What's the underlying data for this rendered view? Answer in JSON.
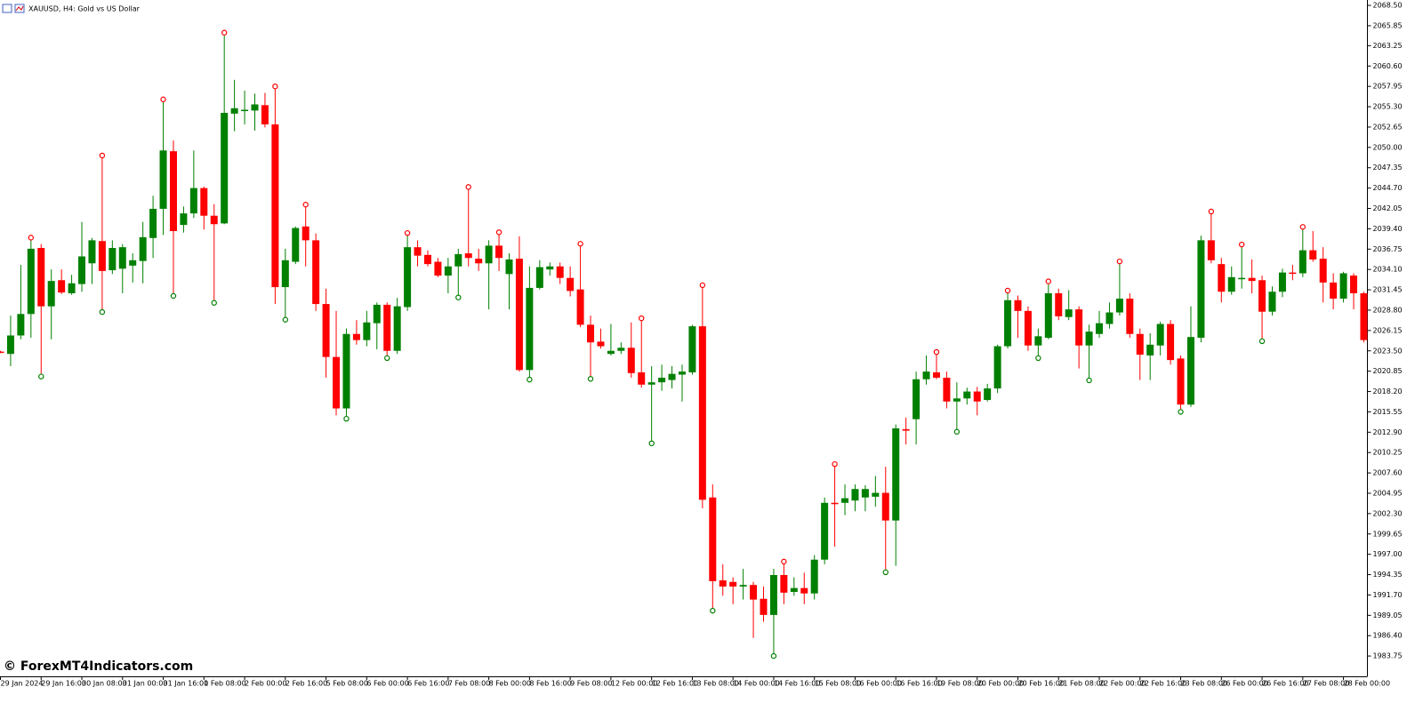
{
  "chart_data": {
    "type": "candlestick",
    "title": "XAUUSD, H4:  Gold vs US Dollar",
    "watermark": "© ForexMT4Indicators.com",
    "up_color": "#008000",
    "down_color": "#ff0000",
    "ylim": [
      1981.1,
      2069.2
    ],
    "yticks": [
      {
        "value": 2068.5,
        "label": "2068.50"
      },
      2065.85,
      2063.25,
      {
        "value": 2060.6,
        "label": "2060.60"
      },
      2057.95,
      {
        "value": 2055.3,
        "label": "2055.30"
      },
      2052.65,
      {
        "value": 2050,
        "label": "2050.00"
      },
      2047.35,
      {
        "value": 2044.7,
        "label": "2044.70"
      },
      2042.05,
      {
        "value": 2039.4,
        "label": "2039.40"
      },
      2036.75,
      {
        "value": 2034.1,
        "label": "2034.10"
      },
      2031.45,
      {
        "value": 2028.8,
        "label": "2028.80"
      },
      2026.15,
      {
        "value": 2023.5,
        "label": "2023.50"
      },
      2020.85,
      {
        "value": 2018.2,
        "label": "2018.20"
      },
      2015.55,
      {
        "value": 2012.9,
        "label": "2012.90"
      },
      2010.25,
      {
        "value": 2007.6,
        "label": "2007.60"
      },
      2004.95,
      {
        "value": 2002.3,
        "label": "2002.30"
      },
      1999.65,
      {
        "value": 1997,
        "label": "1997.00"
      },
      1994.35,
      {
        "value": 1991.7,
        "label": "1991.70"
      },
      1989.05,
      {
        "value": 1986.4,
        "label": "1986.40"
      },
      1983.75
    ],
    "categories": [
      "29 Jan 2024",
      null,
      null,
      null,
      "29 Jan 16:00",
      null,
      null,
      null,
      "30 Jan 08:00",
      null,
      null,
      null,
      "31 Jan 00:00",
      null,
      null,
      null,
      "31 Jan 16:00",
      null,
      null,
      null,
      "1 Feb 08:00",
      null,
      null,
      null,
      "2 Feb 00:00",
      null,
      null,
      null,
      "2 Feb 16:00",
      null,
      null,
      null,
      "5 Feb 08:00",
      null,
      null,
      null,
      "6 Feb 00:00",
      null,
      null,
      null,
      "6 Feb 16:00",
      null,
      null,
      null,
      "7 Feb 08:00",
      null,
      null,
      null,
      "8 Feb 00:00",
      null,
      null,
      null,
      "8 Feb 16:00",
      null,
      null,
      null,
      "9 Feb 08:00",
      null,
      null,
      null,
      "12 Feb 00:00",
      null,
      null,
      null,
      "12 Feb 16:00",
      null,
      null,
      null,
      "13 Feb 08:00",
      null,
      null,
      null,
      "14 Feb 00:00",
      null,
      null,
      null,
      "14 Feb 16:00",
      null,
      null,
      null,
      "15 Feb 08:00",
      null,
      null,
      null,
      "16 Feb 00:00",
      null,
      null,
      null,
      "16 Feb 16:00",
      null,
      null,
      null,
      "19 Feb 08:00",
      null,
      null,
      null,
      "20 Feb 00:00",
      null,
      null,
      null,
      "20 Feb 16:00",
      null,
      null,
      null,
      "21 Feb 08:00",
      null,
      null,
      null,
      "22 Feb 00:00",
      null,
      null,
      null,
      "22 Feb 16:00",
      null,
      null,
      null,
      "23 Feb 08:00",
      null,
      null,
      null,
      "26 Feb 00:00",
      null,
      null,
      null,
      "26 Feb 16:00",
      null,
      null,
      null,
      "27 Feb 08:00",
      null,
      null,
      null,
      "28 Feb 00:00",
      null,
      null
    ],
    "open": [
      2023.4,
      2023.1,
      2025.5,
      2028.3,
      2036.9,
      2029.3,
      2032.7,
      2031.0,
      2032.2,
      2034.9,
      2037.8,
      2034.0,
      2034.2,
      2034.6,
      2035.2,
      2038.2,
      2042.0,
      2049.5,
      2039.9,
      2041.4,
      2044.7,
      2041.1,
      2040.1,
      2054.4,
      2054.8,
      2054.8,
      2055.5,
      2053.0,
      2031.8,
      2035.1,
      2039.7,
      2037.9,
      2029.6,
      2022.7,
      2016.0,
      2025.7,
      2024.9,
      2027.1,
      2029.5,
      2023.5,
      2029.2,
      2037.0,
      2036.0,
      2035.1,
      2033.3,
      2034.5,
      2036.2,
      2035.5,
      2034.9,
      2037.2,
      2033.5,
      2035.5,
      2021.0,
      2031.7,
      2034.1,
      2034.5,
      2033.0,
      2031.5,
      2026.9,
      2024.7,
      2023.1,
      2023.5,
      2023.9,
      2020.7,
      2019.1,
      2019.4,
      2019.7,
      2020.4,
      2020.7,
      2026.7,
      2004.4,
      1993.6,
      1993.4,
      1992.8,
      1993.0,
      1991.2,
      1989.1,
      1994.3,
      1992.1,
      1992.6,
      1991.9,
      1996.3,
      2003.7,
      2003.7,
      2004.0,
      2004.4,
      2004.5,
      2005.0,
      2001.4,
      2013.3,
      2014.6,
      2019.8,
      2020.7,
      2020.0,
      2016.9,
      2017.3,
      2018.2,
      2017.1,
      2018.6,
      2024.1,
      2030.1,
      2028.7,
      2024.2,
      2025.2,
      2031.0,
      2027.9,
      2028.9,
      2024.2,
      2025.7,
      2027.0,
      2028.5,
      2030.3,
      2025.7,
      2022.9,
      2024.2,
      2027.0,
      2022.5,
      2016.5,
      2025.2,
      2037.9,
      2034.8,
      2031.2,
      2032.9,
      2033.0,
      2032.7,
      2028.6,
      2031.2,
      2033.7,
      2033.6,
      2036.6,
      2035.5,
      2032.4,
      2030.3,
      2033.3,
      2031.0
    ],
    "high": [
      2023.5,
      2028.1,
      2034.7,
      2037.9,
      2037.4,
      2034.1,
      2034.1,
      2033.4,
      2040.3,
      2038.2,
      2048.6,
      2037.9,
      2037.4,
      2036.2,
      2040.3,
      2043.7,
      2055.9,
      2050.9,
      2042.3,
      2049.6,
      2044.9,
      2042.6,
      2064.6,
      2058.8,
      2057.4,
      2057.0,
      2057.1,
      2057.6,
      2036.8,
      2039.7,
      2042.2,
      2038.8,
      2031.6,
      2028.7,
      2026.4,
      2027.5,
      2028.7,
      2029.8,
      2029.8,
      2030.4,
      2038.5,
      2037.9,
      2036.6,
      2035.6,
      2035.6,
      2036.8,
      2044.5,
      2036.8,
      2037.9,
      2038.6,
      2036.2,
      2038.4,
      2034.5,
      2035.3,
      2035.0,
      2035.0,
      2034.5,
      2037.1,
      2028.1,
      2026.4,
      2027.0,
      2024.6,
      2027.2,
      2027.4,
      2021.5,
      2021.7,
      2021.5,
      2021.7,
      2026.9,
      2031.7,
      2006.1,
      1995.7,
      1994.0,
      1995.1,
      1993.4,
      1992.8,
      1995.1,
      1995.7,
      1994.0,
      1994.6,
      1996.9,
      2004.4,
      2008.4,
      2006.1,
      2006.1,
      2006.0,
      2007.2,
      2008.4,
      2013.9,
      2014.8,
      2020.8,
      2022.9,
      2023.0,
      2020.8,
      2019.4,
      2018.7,
      2018.8,
      2019.2,
      2024.3,
      2031.0,
      2030.7,
      2029.3,
      2026.4,
      2032.2,
      2031.6,
      2031.4,
      2029.3,
      2026.9,
      2028.7,
      2029.8,
      2034.8,
      2031.0,
      2026.4,
      2025.8,
      2027.3,
      2027.5,
      2022.9,
      2029.3,
      2038.5,
      2041.3,
      2035.6,
      2034.5,
      2037.0,
      2035.4,
      2033.3,
      2031.9,
      2034.2,
      2034.7,
      2039.3,
      2039.1,
      2037.0,
      2033.6,
      2033.8,
      2033.6,
      2031.2
    ],
    "low": [
      2023.2,
      2021.5,
      2025.0,
      2025.2,
      2020.5,
      2025.0,
      2030.9,
      2030.8,
      2031.2,
      2032.2,
      2028.9,
      2033.5,
      2031.0,
      2032.4,
      2032.3,
      2035.6,
      2038.6,
      2031.0,
      2038.9,
      2040.8,
      2039.3,
      2030.1,
      2040.0,
      2052.1,
      2053.0,
      2052.2,
      2052.6,
      2029.6,
      2027.9,
      2034.8,
      2034.5,
      2028.7,
      2020.0,
      2015.1,
      2015.0,
      2024.3,
      2024.1,
      2023.7,
      2022.9,
      2023.1,
      2028.7,
      2034.5,
      2034.5,
      2033.1,
      2031.0,
      2030.8,
      2034.5,
      2033.9,
      2028.9,
      2033.9,
      2028.9,
      2020.8,
      2020.1,
      2031.5,
      2033.3,
      2032.2,
      2030.6,
      2026.6,
      2020.2,
      2023.8,
      2022.9,
      2023.1,
      2020.0,
      2018.7,
      2011.8,
      2018.3,
      2018.6,
      2016.9,
      2020.4,
      2003.0,
      1990.0,
      1991.6,
      1990.5,
      1991.1,
      1986.1,
      1988.2,
      1984.1,
      1990.5,
      1991.6,
      1990.5,
      1991.1,
      1995.7,
      1998.0,
      2002.1,
      2002.6,
      2002.6,
      2003.2,
      1995.0,
      1995.5,
      2011.3,
      2011.3,
      2019.1,
      2019.8,
      2016.0,
      2013.3,
      2016.5,
      2015.1,
      2016.9,
      2018.0,
      2023.8,
      2025.2,
      2023.5,
      2022.9,
      2025.0,
      2027.5,
      2027.5,
      2021.2,
      2020.0,
      2025.2,
      2026.4,
      2028.1,
      2025.2,
      2019.7,
      2019.7,
      2022.9,
      2021.7,
      2015.9,
      2016.2,
      2024.6,
      2034.9,
      2029.8,
      2030.8,
      2031.6,
      2031.0,
      2025.1,
      2028.1,
      2030.5,
      2032.7,
      2033.1,
      2035.1,
      2029.8,
      2028.9,
      2029.8,
      2028.9,
      2024.6
    ],
    "close": [
      2023.3,
      2025.5,
      2028.3,
      2036.8,
      2029.3,
      2032.6,
      2031.1,
      2032.3,
      2035.8,
      2037.9,
      2033.9,
      2036.9,
      2037.0,
      2035.3,
      2038.3,
      2042.0,
      2049.6,
      2039.1,
      2041.4,
      2044.7,
      2041.1,
      2040.0,
      2054.5,
      2055.1,
      2054.9,
      2055.6,
      2053.0,
      2031.8,
      2035.3,
      2039.5,
      2037.9,
      2029.6,
      2022.7,
      2016.0,
      2025.7,
      2024.9,
      2027.2,
      2029.5,
      2023.5,
      2029.3,
      2037.0,
      2035.9,
      2034.8,
      2033.3,
      2034.5,
      2036.1,
      2035.6,
      2034.9,
      2037.2,
      2035.6,
      2035.4,
      2021.0,
      2031.7,
      2034.4,
      2034.5,
      2033.0,
      2031.3,
      2026.9,
      2024.6,
      2024.1,
      2023.5,
      2023.9,
      2020.6,
      2019.1,
      2019.4,
      2020.0,
      2020.5,
      2020.8,
      2026.7,
      2004.1,
      1993.5,
      1992.8,
      1992.8,
      1993.0,
      1991.1,
      1989.1,
      1994.3,
      1992.0,
      1992.6,
      1991.9,
      1996.3,
      2003.7,
      2003.6,
      2004.3,
      2005.5,
      2005.5,
      2005.0,
      2001.4,
      2013.4,
      2013.1,
      2019.8,
      2020.8,
      2020.0,
      2016.9,
      2017.3,
      2018.2,
      2016.9,
      2018.6,
      2024.1,
      2030.1,
      2028.7,
      2024.2,
      2025.4,
      2031.0,
      2028.0,
      2028.9,
      2024.2,
      2026.0,
      2027.1,
      2028.5,
      2030.3,
      2025.7,
      2023.0,
      2024.3,
      2027.0,
      2022.3,
      2016.5,
      2025.3,
      2037.9,
      2035.3,
      2031.2,
      2033.1,
      2033.0,
      2032.6,
      2028.6,
      2031.2,
      2033.7,
      2033.6,
      2036.6,
      2035.4,
      2032.4,
      2030.3,
      2033.6,
      2031.0,
      2024.9
    ]
  }
}
